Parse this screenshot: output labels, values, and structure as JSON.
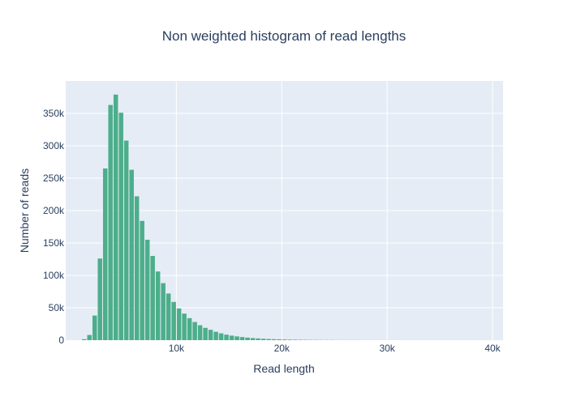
{
  "chart_data": {
    "type": "bar",
    "title": "Non weighted histogram of read lengths",
    "xlabel": "Read length",
    "ylabel": "Number of reads",
    "xlim": [
      -500,
      41000
    ],
    "ylim": [
      0,
      400000
    ],
    "bin_width": 500,
    "x_ticks": [
      {
        "value": 10000,
        "label": "10k"
      },
      {
        "value": 20000,
        "label": "20k"
      },
      {
        "value": 30000,
        "label": "30k"
      },
      {
        "value": 40000,
        "label": "40k"
      }
    ],
    "y_ticks": [
      {
        "value": 0,
        "label": "0"
      },
      {
        "value": 50000,
        "label": "50k"
      },
      {
        "value": 100000,
        "label": "100k"
      },
      {
        "value": 150000,
        "label": "150k"
      },
      {
        "value": 200000,
        "label": "200k"
      },
      {
        "value": 250000,
        "label": "250k"
      },
      {
        "value": 300000,
        "label": "300k"
      },
      {
        "value": 350000,
        "label": "350k"
      }
    ],
    "x": [
      1250,
      1750,
      2250,
      2750,
      3250,
      3750,
      4250,
      4750,
      5250,
      5750,
      6250,
      6750,
      7250,
      7750,
      8250,
      8750,
      9250,
      9750,
      10250,
      10750,
      11250,
      11750,
      12250,
      12750,
      13250,
      13750,
      14250,
      14750,
      15250,
      15750,
      16250,
      16750,
      17250,
      17750,
      18250,
      18750,
      19250,
      19750,
      20250,
      20750,
      21250,
      21750,
      22250,
      22750,
      23250,
      23750,
      24250,
      24750,
      25250,
      25750,
      26250,
      26750,
      27250,
      27750,
      28250,
      28750,
      29250,
      29750,
      30250,
      30750,
      31250,
      31750,
      32250,
      32750,
      33250,
      33750,
      34250,
      34750,
      35250,
      35750,
      36250,
      36750,
      37250,
      37750,
      38250,
      38750,
      39250,
      39750
    ],
    "values": [
      1500,
      8000,
      38000,
      126000,
      265000,
      363000,
      379000,
      351000,
      308000,
      263000,
      222000,
      184000,
      155000,
      130000,
      106000,
      88000,
      72000,
      59000,
      49000,
      41000,
      34000,
      28000,
      23000,
      19000,
      16000,
      13000,
      10500,
      8500,
      7000,
      5800,
      4800,
      3900,
      3200,
      2700,
      2200,
      1800,
      1500,
      1300,
      1100,
      900,
      750,
      620,
      520,
      440,
      370,
      310,
      260,
      220,
      190,
      160,
      140,
      120,
      100,
      90,
      80,
      70,
      60,
      50,
      45,
      40,
      35,
      30,
      28,
      25,
      22,
      20,
      18,
      16,
      14,
      12,
      10,
      9,
      8,
      7,
      6,
      5,
      4,
      3
    ],
    "colors": {
      "bar": "#4cae8a",
      "bar_edge": "#ffffff",
      "plot_bg": "#e5ecf6",
      "grid": "#ffffff",
      "text": "#2a3f5f"
    },
    "grid": true
  }
}
